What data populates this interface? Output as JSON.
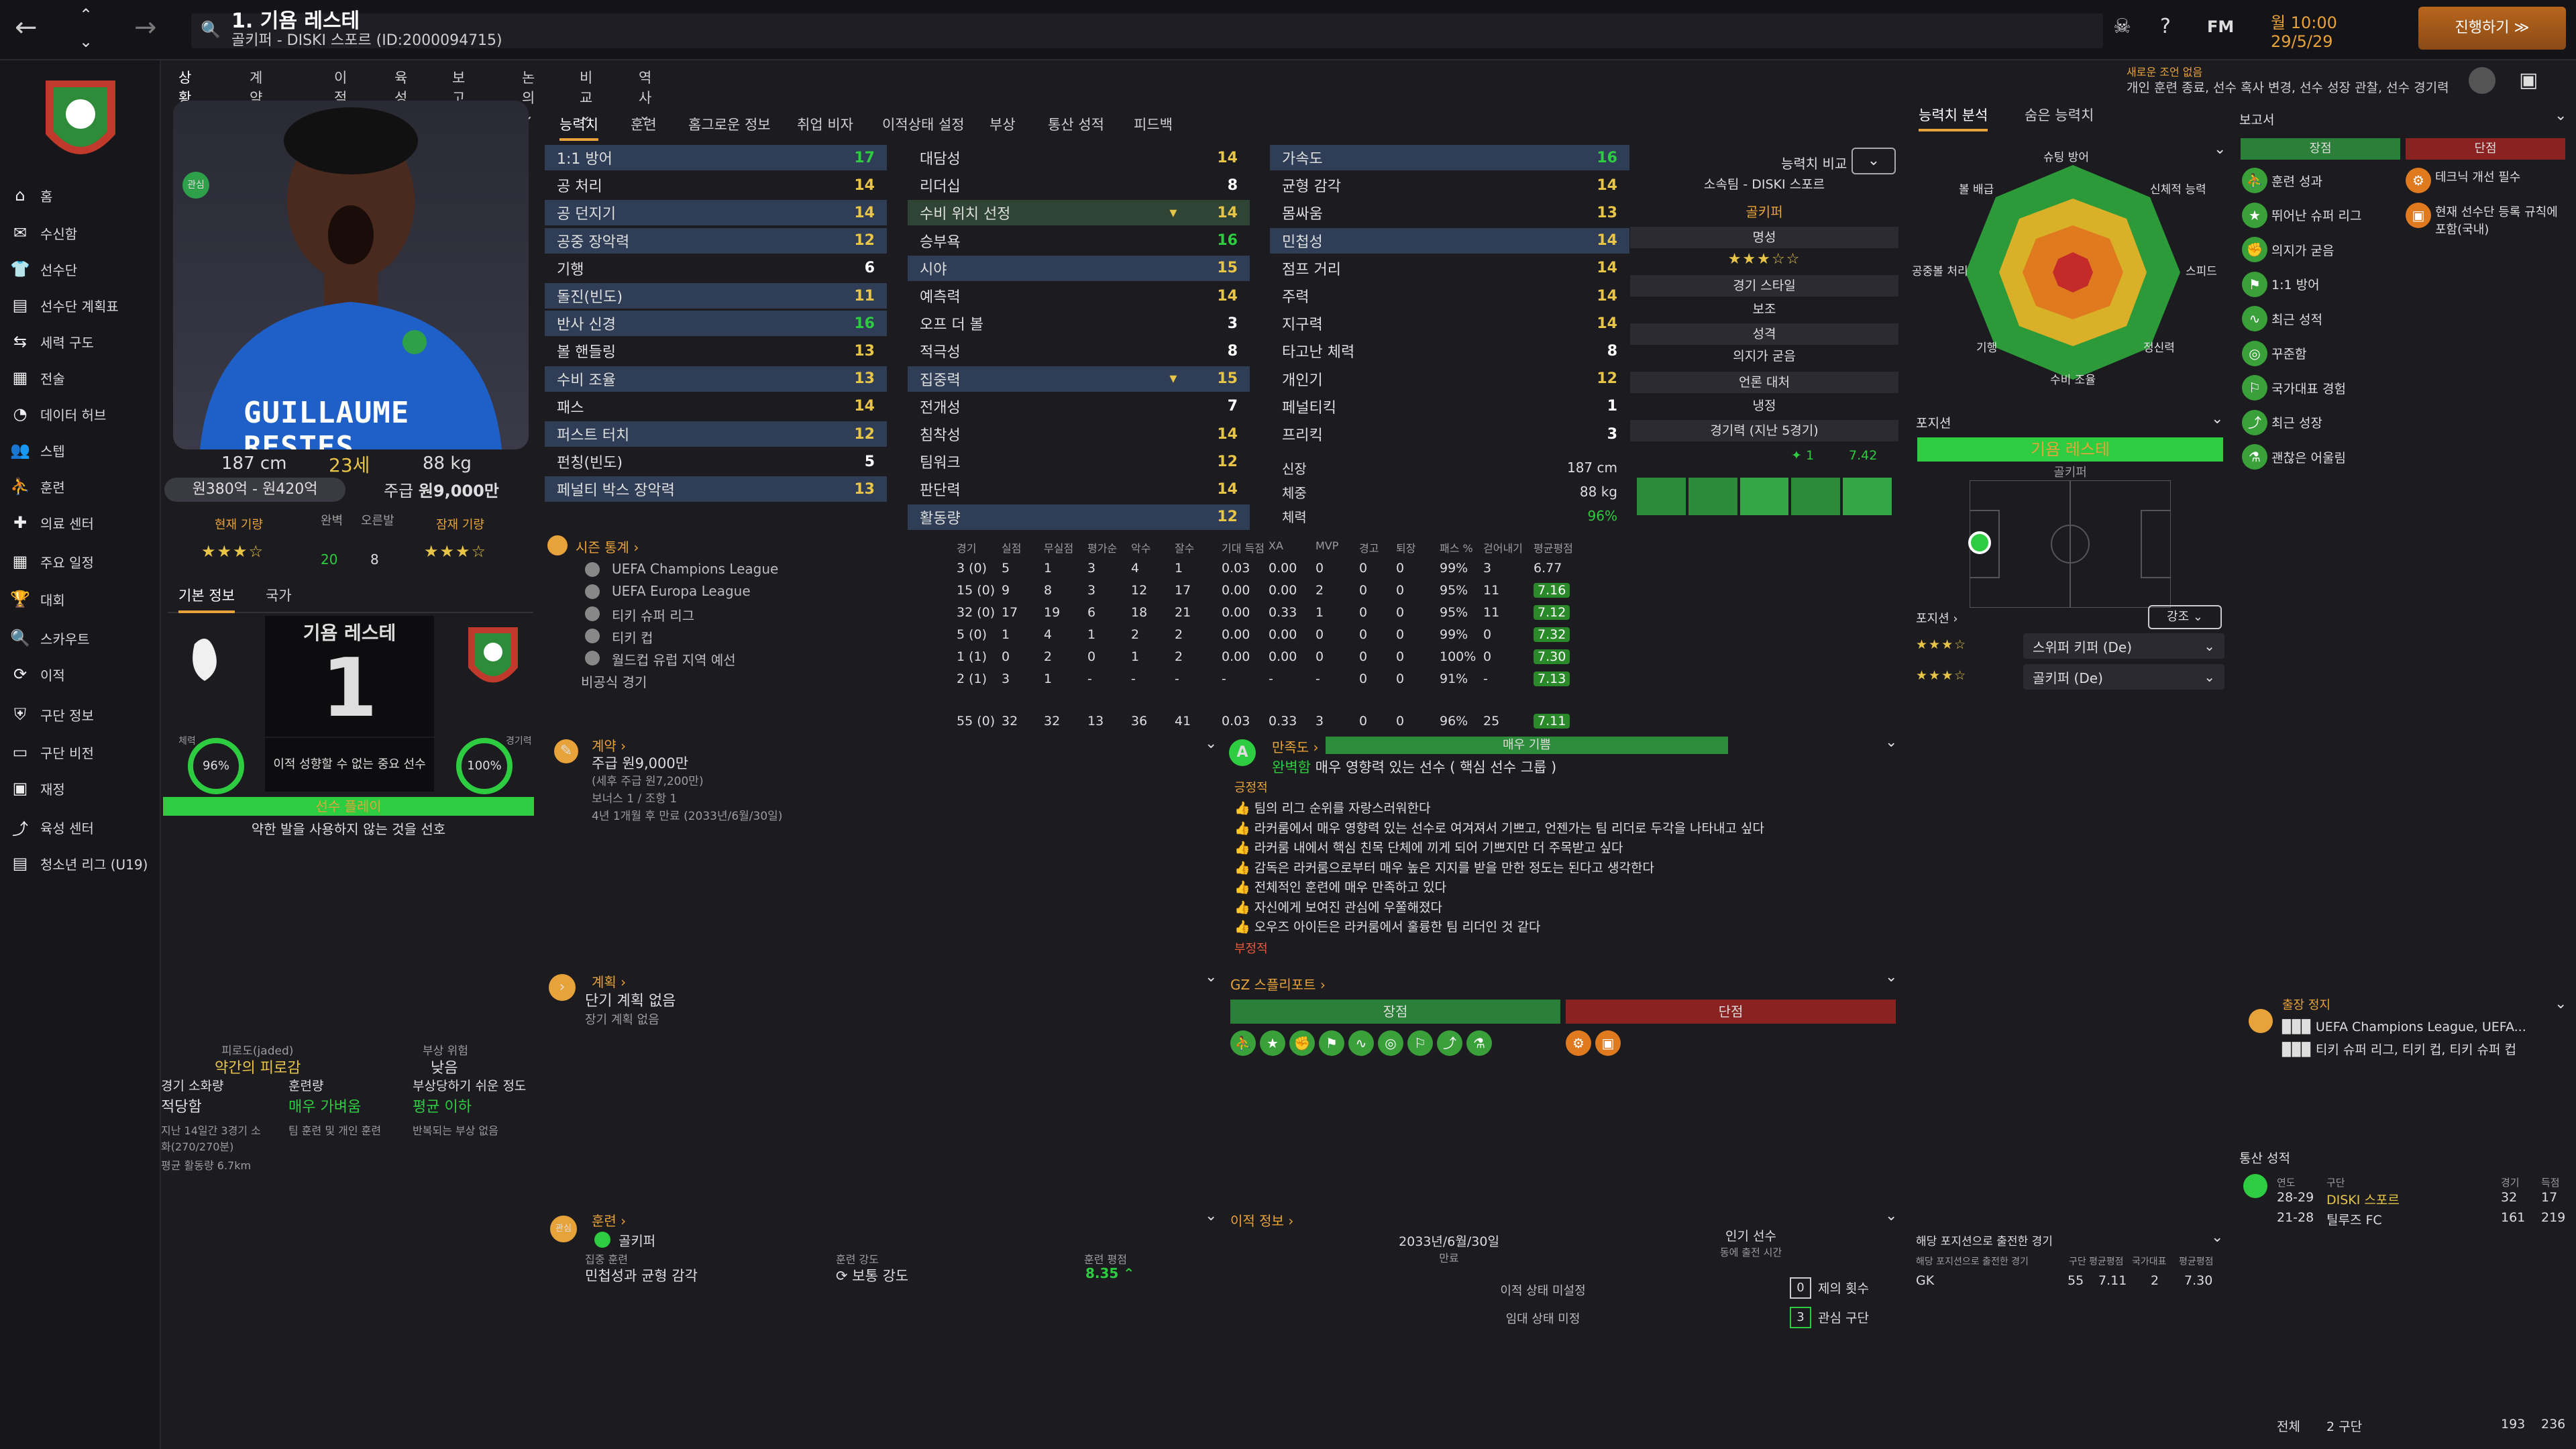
{
  "header": {
    "title": "1. 기욤 레스테",
    "subtitle": "골키퍼 - DISKI 스포르 (ID:2000094715)",
    "time": "월 10:00",
    "date": "29/5/29",
    "continue": "진행하기",
    "fm": "FM",
    "notice_title": "새로운 조언 없음",
    "notice_body": "개인 훈련 종료, 선수 혹사 변경, 선수 성장 관찰, 선수 경기력 변동"
  },
  "sidebar": {
    "items": [
      "홈",
      "수신함",
      "선수단",
      "선수단 계획표",
      "세력 구도",
      "전술",
      "데이터 허브",
      "스텝",
      "훈련",
      "의료 센터",
      "주요 일정",
      "대회",
      "스카우트",
      "이적",
      "구단 정보",
      "구단 비전",
      "재정",
      "육성 센터",
      "청소년 리그 (U19)"
    ]
  },
  "top_menu": [
    "상황판",
    "계약 세부",
    "이적",
    "육성",
    "보고서",
    "논의",
    "비교",
    "역사"
  ],
  "player": {
    "height": "187 cm",
    "age": "23세",
    "weight": "88 kg",
    "value": "원380억 - 원420억",
    "wage_label": "주급",
    "wage": "원9,000만",
    "current_ability": "현재 기량",
    "potential_ability": "잠재 기량",
    "apps_label": "완벽",
    "apps": "20",
    "skill_label": "오른발",
    "skill": "8",
    "shirt_name": "GUILLAUME RESTES",
    "corner_tag": "관심",
    "stars_current": "★★★☆",
    "stars_potential": "★★★☆"
  },
  "info_tabs": [
    "기본 정보",
    "국가"
  ],
  "profile": {
    "name": "기욤 레스테",
    "number": "1",
    "status": "이적 성향할 수 없는 중요 선수",
    "cond_label": "체력",
    "cond": "96%",
    "sharp_label": "경기력",
    "sharp": "100%",
    "role_strip": "선수 플레이",
    "note": "약한 발을 사용하지 않는 것을 선호"
  },
  "fitness": {
    "jaded_title": "피로도(jaded)",
    "jaded_val": "약간의 피로감",
    "injury_title": "부상 위험",
    "injury_val": "낮음",
    "load_title": "경기 소화량",
    "load_val": "적당함",
    "train_title": "훈련량",
    "train_val": "매우 가벼움",
    "prone_title": "부상당하기 쉬운 정도",
    "prone_val": "평균 이하",
    "load_note": "지난 14일간 3경기 소화(270/270분)",
    "dist": "평균 활동량 6.7km",
    "train_note": "팀 훈련 및 개인 훈련",
    "prone_note": "반복되는 부상 없음"
  },
  "attr_tabs": [
    "능력치",
    "훈련",
    "홈그로운 정보",
    "취업 비자",
    "이적상태 설정",
    "부상",
    "통산 성적",
    "피드백"
  ],
  "attrs_col1": [
    {
      "n": "1:1 방어",
      "v": "17"
    },
    {
      "n": "공 처리",
      "v": "14"
    },
    {
      "n": "공 던지기",
      "v": "14"
    },
    {
      "n": "공중 장악력",
      "v": "12"
    },
    {
      "n": "기행",
      "v": "6"
    },
    {
      "n": "돌진(빈도)",
      "v": "11"
    },
    {
      "n": "반사 신경",
      "v": "16"
    },
    {
      "n": "볼 핸들링",
      "v": "13"
    },
    {
      "n": "수비 조율",
      "v": "13"
    },
    {
      "n": "패스",
      "v": "14"
    },
    {
      "n": "퍼스트 터치",
      "v": "12"
    },
    {
      "n": "펀칭(빈도)",
      "v": "5"
    },
    {
      "n": "페널티 박스 장악력",
      "v": "13"
    }
  ],
  "attrs_col2": [
    {
      "n": "대담성",
      "v": "14"
    },
    {
      "n": "리더십",
      "v": "8"
    },
    {
      "n": "수비 위치 선정",
      "v": "14"
    },
    {
      "n": "승부욕",
      "v": "16"
    },
    {
      "n": "시야",
      "v": "15"
    },
    {
      "n": "예측력",
      "v": "14"
    },
    {
      "n": "오프 더 볼",
      "v": "3"
    },
    {
      "n": "적극성",
      "v": "8"
    },
    {
      "n": "집중력",
      "v": "15"
    },
    {
      "n": "전개성",
      "v": "7"
    },
    {
      "n": "침착성",
      "v": "14"
    },
    {
      "n": "팀워크",
      "v": "12"
    },
    {
      "n": "판단력",
      "v": "14"
    },
    {
      "n": "활동량",
      "v": "12"
    }
  ],
  "attrs_col3": [
    {
      "n": "가속도",
      "v": "16"
    },
    {
      "n": "균형 감각",
      "v": "14"
    },
    {
      "n": "몸싸움",
      "v": "13"
    },
    {
      "n": "민첩성",
      "v": "14"
    },
    {
      "n": "점프 거리",
      "v": "14"
    },
    {
      "n": "주력",
      "v": "14"
    },
    {
      "n": "지구력",
      "v": "14"
    },
    {
      "n": "타고난 체력",
      "v": "8"
    },
    {
      "n": "개인기",
      "v": "12"
    },
    {
      "n": "페널티킥",
      "v": "1"
    },
    {
      "n": "프리킥",
      "v": "3"
    }
  ],
  "phys": [
    {
      "n": "신장",
      "v": "187 cm"
    },
    {
      "n": "체중",
      "v": "88 kg"
    },
    {
      "n": "체력",
      "v": "96%"
    }
  ],
  "compare": {
    "btn": "능력치 비교",
    "club_label": "소속팀 - DISKI 스포르",
    "position": "골키퍼",
    "rep_label": "명성",
    "rep_stars": "★★★☆☆",
    "style_label": "경기 스타일",
    "style": "보조",
    "personality_label": "성격",
    "personality": "의지가 굳음",
    "media_label": "언론 대처",
    "media": "냉정",
    "form_label": "경기력 (지난 5경기)",
    "form_avg": "7.42",
    "form_min": "1"
  },
  "season_stats": {
    "title": "시즌 통계",
    "cols": [
      "경기",
      "실점",
      "무실점",
      "평가순",
      "악수",
      "잘수",
      "기대 득점",
      "XA",
      "MVP",
      "경고",
      "퇴장",
      "패스 %",
      "걷어내기",
      "평균평점"
    ],
    "rows": [
      {
        "comp": "UEFA Champions League",
        "vals": [
          "3 (0)",
          "5",
          "1",
          "3",
          "4",
          "1",
          "0.03",
          "0.00",
          "0",
          "0",
          "0",
          "99%",
          "3",
          "6.77"
        ]
      },
      {
        "comp": "UEFA Europa League",
        "vals": [
          "15 (0)",
          "9",
          "8",
          "3",
          "12",
          "17",
          "0.00",
          "0.00",
          "2",
          "0",
          "0",
          "95%",
          "11",
          "7.16"
        ]
      },
      {
        "comp": "티키 슈퍼 리그",
        "vals": [
          "32 (0)",
          "17",
          "19",
          "6",
          "18",
          "21",
          "0.00",
          "0.33",
          "1",
          "0",
          "0",
          "95%",
          "11",
          "7.12"
        ]
      },
      {
        "comp": "티키 컵",
        "vals": [
          "5 (0)",
          "1",
          "4",
          "1",
          "2",
          "2",
          "0.00",
          "0.00",
          "0",
          "0",
          "0",
          "99%",
          "0",
          "7.32"
        ]
      },
      {
        "comp": "월드컵 유럽 지역 예선",
        "vals": [
          "1 (1)",
          "0",
          "2",
          "0",
          "1",
          "2",
          "0.00",
          "0.00",
          "0",
          "0",
          "0",
          "100%",
          "0",
          "7.30"
        ]
      },
      {
        "comp": "비공식 경기",
        "vals": [
          "2 (1)",
          "3",
          "1",
          "-",
          "-",
          "-",
          "-",
          "-",
          "-",
          "0",
          "0",
          "91%",
          "-",
          "7.13"
        ]
      }
    ],
    "total": [
      "55 (0)",
      "32",
      "32",
      "13",
      "36",
      "41",
      "0.03",
      "0.33",
      "3",
      "0",
      "0",
      "96%",
      "25",
      "7.11"
    ]
  },
  "contract": {
    "title": "계약",
    "wage": "주급 원9,000만",
    "wage_sub": "(세후 주급 원7,200만)",
    "bonus": "보너스 1 / 조항 1",
    "expiry": "4년 1개월 후 만료 (2033년/6월/30일)"
  },
  "happiness": {
    "title": "만족도",
    "level": "매우 기쁨",
    "status_word": "완벽함",
    "status_text": "매우 영향력 있는 선수 ( 핵심 선수 그룹 )",
    "pos_label": "긍정적",
    "neg_label": "부정적",
    "items": [
      "팀의 리그 순위를 자랑스러워한다",
      "라커룸에서 매우 영향력 있는 선수로 여겨져서 기쁘고, 언젠가는 팀 리더로 두각을 나타내고 싶다",
      "라커룸 내에서 핵심 친목 단체에 끼게 되어 기쁘지만 더 주목받고 싶다",
      "감독은 라커룸으로부터 매우 높은 지지를 받을 만한 정도는 된다고 생각한다",
      "전체적인 훈련에 매우 만족하고 있다",
      "자신에게 보여진 관심에 우쭐해졌다",
      "오우즈 아이든은 라커룸에서 훌륭한 팀 리더인 것 같다"
    ]
  },
  "plans": {
    "title": "계획",
    "short": "단기 계획 없음",
    "long": "장기 계획 없음"
  },
  "gz": {
    "title": "GZ 스플리포트",
    "strengths": "장점",
    "weaknesses": "단점"
  },
  "training": {
    "title": "훈련",
    "group": "골키퍼",
    "focus_label": "집중 훈련",
    "focus": "민첩성과 균형 감각",
    "intensity_label": "훈련 강도",
    "intensity": "보통 강도",
    "rating_label": "훈련 평점",
    "rating": "8.35"
  },
  "transfer": {
    "title": "이적 정보",
    "date": "2033년/6월/30일",
    "date_label": "만료",
    "popular": "인기 선수",
    "popular_label": "동에 출전 시간",
    "status1": "이적 상태 미설정",
    "status2": "임대 상태 미정",
    "offers_n": "0",
    "offers": "제의 횟수",
    "clubs_n": "3",
    "clubs": "관심 구단"
  },
  "analysis": {
    "tabs": [
      "능력치 분석",
      "숨은 능력치"
    ],
    "labels": [
      "슈팅 방어",
      "신체적 능력",
      "스피드",
      "정신력",
      "수비 조율",
      "기행",
      "공중볼 처리",
      "볼 배급"
    ]
  },
  "positions": {
    "title": "포지션",
    "name": "기욤 레스테",
    "pos": "골키퍼",
    "role_label": "포지션",
    "strong": "강조",
    "roles": [
      {
        "stars": "★★★☆",
        "name": "스위퍼 키퍼 (De)"
      },
      {
        "stars": "★★★☆",
        "name": "골키퍼 (De)"
      }
    ]
  },
  "pos_apps": {
    "title": "해당 포지션으로 출전한 경기",
    "cols": [
      "해당 포지션으로 출전한 경기",
      "구단",
      "평균평점",
      "국가대표",
      "평균평점"
    ],
    "row": [
      "GK",
      "55",
      "7.11",
      "2",
      "7.30"
    ]
  },
  "reports": {
    "title": "보고서",
    "strengths": "장점",
    "weaknesses": "단점",
    "pos": [
      "훈련 성과",
      "뛰어난 슈퍼 리그",
      "의지가 굳음",
      "1:1 방어",
      "최근 성적",
      "꾸준함",
      "국가대표 경험",
      "최근 성장",
      "괜찮은 어울림"
    ],
    "neg": [
      "테크닉 개선 필수",
      "현재 선수단 등록 규칙에 포함(국내)"
    ]
  },
  "suspension": {
    "title": "출장 정지",
    "l1": "UEFA Champions League, UEFA...",
    "l2": "티키 슈퍼 리그, 티키 컵, 티키 슈퍼 컵"
  },
  "career": {
    "title": "통산 성적",
    "cols": [
      "연도",
      "구단",
      "경기",
      "득점"
    ],
    "rows": [
      [
        "28-29",
        "DISKI 스포르",
        "32",
        "17"
      ],
      [
        "21-28",
        "틸루즈 FC",
        "161",
        "219"
      ]
    ],
    "total_label": "전체",
    "total_clubs": "2 구단",
    "total_apps": "193",
    "total_goals": "236"
  },
  "colors": {
    "accent": "#e8a23a",
    "green": "#2ecc40",
    "red": "#c0392b",
    "bg": "#1c1c20"
  }
}
